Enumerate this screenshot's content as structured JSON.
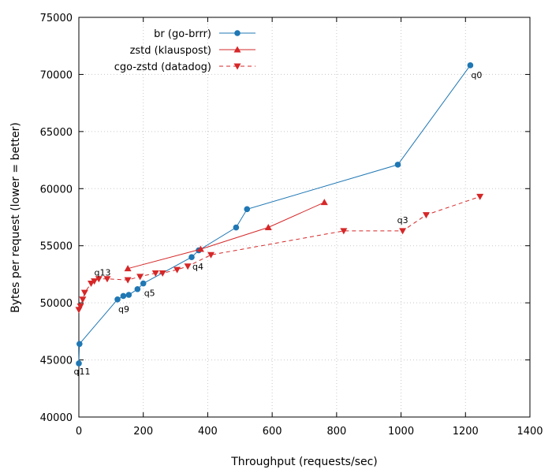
{
  "chart_data": {
    "type": "line",
    "xlabel": "Throughput (requests/sec)",
    "ylabel": "Bytes per request (lower = better)",
    "xlim": [
      0,
      1400
    ],
    "ylim": [
      40000,
      75000
    ],
    "x_ticks": [
      0,
      200,
      400,
      600,
      800,
      1000,
      1200,
      1400
    ],
    "y_ticks": [
      40000,
      45000,
      50000,
      55000,
      60000,
      65000,
      70000,
      75000
    ],
    "grid": true,
    "legend_position": "top-left",
    "series": [
      {
        "name": "br (go-brrr)",
        "color": "#1f77b4",
        "marker": "circle",
        "line_style": "solid",
        "points": [
          {
            "x": 0,
            "y": 44700
          },
          {
            "x": 2,
            "y": 46400
          },
          {
            "x": 120,
            "y": 50300
          },
          {
            "x": 138,
            "y": 50600
          },
          {
            "x": 155,
            "y": 50700
          },
          {
            "x": 182,
            "y": 51200
          },
          {
            "x": 200,
            "y": 51700
          },
          {
            "x": 350,
            "y": 54000
          },
          {
            "x": 372,
            "y": 54600
          },
          {
            "x": 488,
            "y": 56600
          },
          {
            "x": 522,
            "y": 58200
          },
          {
            "x": 990,
            "y": 62100
          },
          {
            "x": 1215,
            "y": 70800
          }
        ]
      },
      {
        "name": "zstd (klauspost)",
        "color": "#d62728",
        "marker": "triangle-up",
        "line_style": "solid",
        "points": [
          {
            "x": 152,
            "y": 53000
          },
          {
            "x": 378,
            "y": 54700
          },
          {
            "x": 588,
            "y": 56600
          },
          {
            "x": 762,
            "y": 58800
          }
        ]
      },
      {
        "name": "cgo-zstd (datadog)",
        "color": "#d62728",
        "marker": "triangle-down",
        "line_style": "dashed",
        "points": [
          {
            "x": 0,
            "y": 49400
          },
          {
            "x": 5,
            "y": 49700
          },
          {
            "x": 12,
            "y": 50300
          },
          {
            "x": 18,
            "y": 50900
          },
          {
            "x": 38,
            "y": 51700
          },
          {
            "x": 48,
            "y": 51900
          },
          {
            "x": 62,
            "y": 52100
          },
          {
            "x": 88,
            "y": 52100
          },
          {
            "x": 152,
            "y": 52000
          },
          {
            "x": 190,
            "y": 52300
          },
          {
            "x": 238,
            "y": 52600
          },
          {
            "x": 260,
            "y": 52600
          },
          {
            "x": 305,
            "y": 52900
          },
          {
            "x": 338,
            "y": 53200
          },
          {
            "x": 410,
            "y": 54200
          },
          {
            "x": 822,
            "y": 56300
          },
          {
            "x": 1005,
            "y": 56300
          },
          {
            "x": 1078,
            "y": 57700
          },
          {
            "x": 1245,
            "y": 59300
          }
        ]
      }
    ],
    "annotations": [
      {
        "text": "q0",
        "x": 1215,
        "y": 70800,
        "placement": "below-right"
      },
      {
        "text": "q3",
        "x": 1005,
        "y": 56300,
        "placement": "above"
      },
      {
        "text": "q4",
        "x": 350,
        "y": 54000,
        "placement": "below-right"
      },
      {
        "text": "q5",
        "x": 200,
        "y": 51700,
        "placement": "below-right"
      },
      {
        "text": "q9",
        "x": 120,
        "y": 50300,
        "placement": "below-right"
      },
      {
        "text": "q11",
        "x": 0,
        "y": 44700,
        "placement": "below"
      },
      {
        "text": "q13",
        "x": 38,
        "y": 51700,
        "placement": "above-right"
      }
    ]
  }
}
